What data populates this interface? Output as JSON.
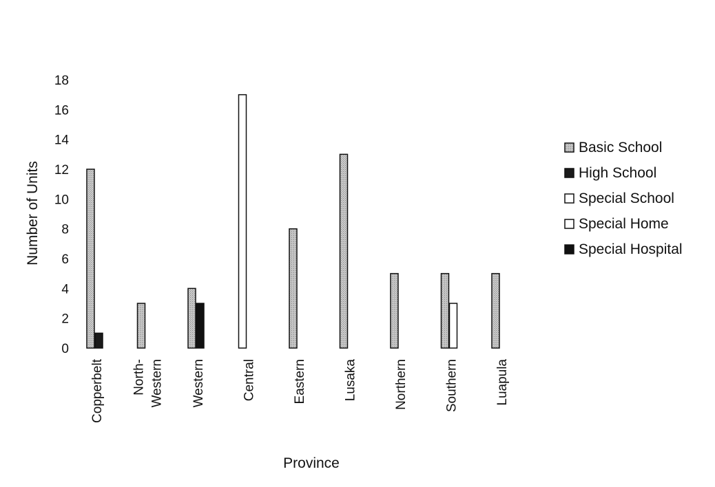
{
  "chart_data": {
    "type": "bar",
    "title": "",
    "xlabel": "Province",
    "ylabel": "Number of Units",
    "ylim": [
      0,
      18
    ],
    "yticks": [
      0,
      2,
      4,
      6,
      8,
      10,
      12,
      14,
      16,
      18
    ],
    "grid": false,
    "legend_position": "right",
    "categories": [
      [
        "Copperbelt"
      ],
      [
        "North-",
        "Western"
      ],
      [
        "Western"
      ],
      [
        "Central"
      ],
      [
        "Eastern"
      ],
      [
        "Lusaka"
      ],
      [
        "Northern"
      ],
      [
        "Southern"
      ],
      [
        "Luapula"
      ]
    ],
    "series": [
      {
        "name": "Basic School",
        "color": "#b8b8b8",
        "values": [
          12,
          3,
          4,
          null,
          8,
          13,
          5,
          5,
          5
        ]
      },
      {
        "name": "High School",
        "color": "#1a1a1a",
        "values": [
          1,
          null,
          null,
          null,
          null,
          null,
          null,
          null,
          null
        ]
      },
      {
        "name": "Special School",
        "color": "#ffffff",
        "values": [
          null,
          null,
          null,
          17,
          null,
          null,
          null,
          null,
          null
        ]
      },
      {
        "name": "Special Home",
        "color": "#ffffff",
        "values": [
          null,
          null,
          null,
          null,
          null,
          null,
          null,
          3,
          null
        ]
      },
      {
        "name": "Special Hospital",
        "color": "#111111",
        "values": [
          null,
          null,
          3,
          null,
          null,
          null,
          null,
          null,
          null
        ]
      }
    ]
  }
}
